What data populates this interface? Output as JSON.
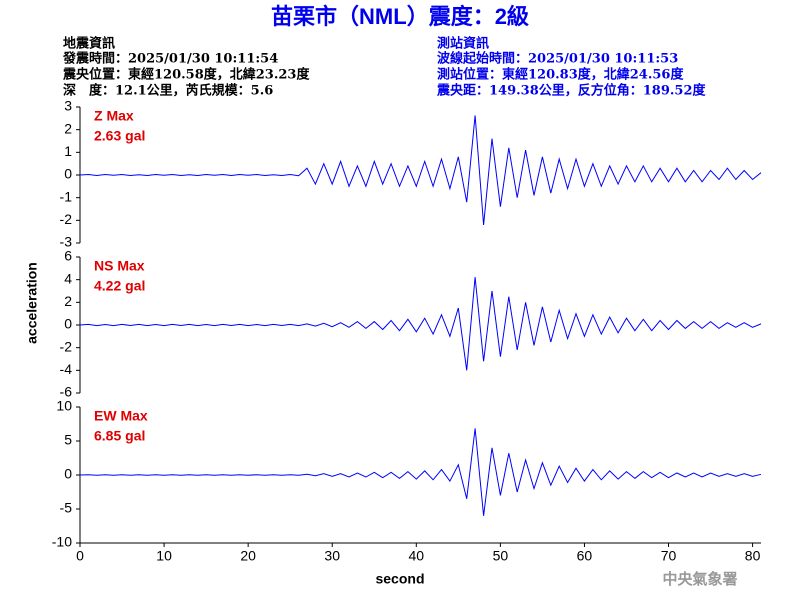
{
  "header": {
    "title": "苗栗市（NML）震度：2級",
    "left": [
      "地震資訊",
      "發震時間：2025/01/30 10:11:54",
      "震央位置：東經120.58度，北緯23.23度",
      "深　度：12.1公里，芮氏規模：5.6"
    ],
    "right": [
      "測站資訊",
      "波線起始時間：2025/01/30 10:11:53",
      "測站位置：東經120.83度，北緯24.56度",
      "震央距：149.38公里，反方位角：189.52度"
    ],
    "y_label": "acceleration",
    "x_label": "second",
    "footer": "中央氣象署"
  },
  "chart_data": [
    {
      "type": "line",
      "annotation": [
        "Z Max",
        "2.63 gal"
      ],
      "color": "#0000ff",
      "xlim": [
        0,
        81
      ],
      "ylim": [
        -3,
        3
      ],
      "yticks": [
        -3,
        -2,
        -1,
        0,
        1,
        2,
        3
      ],
      "x": [
        0,
        1,
        2,
        3,
        4,
        5,
        6,
        7,
        8,
        9,
        10,
        11,
        12,
        13,
        14,
        15,
        16,
        17,
        18,
        19,
        20,
        21,
        22,
        23,
        24,
        25,
        26,
        27,
        28,
        29,
        30,
        31,
        32,
        33,
        34,
        35,
        36,
        37,
        38,
        39,
        40,
        41,
        42,
        43,
        44,
        45,
        46,
        47,
        48,
        49,
        50,
        51,
        52,
        53,
        54,
        55,
        56,
        57,
        58,
        59,
        60,
        61,
        62,
        63,
        64,
        65,
        66,
        67,
        68,
        69,
        70,
        71,
        72,
        73,
        74,
        75,
        76,
        77,
        78,
        79,
        80,
        81
      ],
      "values": [
        0,
        0.02,
        -0.02,
        0.02,
        -0.01,
        0.02,
        -0.02,
        0.01,
        -0.02,
        0.02,
        -0.01,
        0.02,
        -0.02,
        0.01,
        -0.02,
        0.02,
        -0.01,
        0.02,
        -0.02,
        0.02,
        -0.01,
        0.02,
        -0.02,
        0.01,
        -0.02,
        0.02,
        -0.03,
        0.3,
        -0.4,
        0.5,
        -0.4,
        0.6,
        -0.5,
        0.4,
        -0.5,
        0.6,
        -0.4,
        0.5,
        -0.5,
        0.4,
        -0.5,
        0.6,
        -0.5,
        0.7,
        -0.6,
        0.8,
        -1.2,
        2.63,
        -2.2,
        1.6,
        -1.4,
        1.2,
        -1,
        1.1,
        -0.9,
        0.8,
        -0.8,
        0.7,
        -0.6,
        0.7,
        -0.5,
        0.5,
        -0.5,
        0.4,
        -0.4,
        0.4,
        -0.3,
        0.4,
        -0.3,
        0.3,
        -0.3,
        0.3,
        -0.3,
        0.2,
        -0.3,
        0.2,
        -0.2,
        0.3,
        -0.2,
        0.2,
        -0.2,
        0.1
      ]
    },
    {
      "type": "line",
      "annotation": [
        "NS Max",
        "4.22 gal"
      ],
      "color": "#0000ff",
      "xlim": [
        0,
        81
      ],
      "ylim": [
        -6,
        6
      ],
      "yticks": [
        -6,
        -4,
        -2,
        0,
        2,
        4,
        6
      ],
      "x": [
        0,
        1,
        2,
        3,
        4,
        5,
        6,
        7,
        8,
        9,
        10,
        11,
        12,
        13,
        14,
        15,
        16,
        17,
        18,
        19,
        20,
        21,
        22,
        23,
        24,
        25,
        26,
        27,
        28,
        29,
        30,
        31,
        32,
        33,
        34,
        35,
        36,
        37,
        38,
        39,
        40,
        41,
        42,
        43,
        44,
        45,
        46,
        47,
        48,
        49,
        50,
        51,
        52,
        53,
        54,
        55,
        56,
        57,
        58,
        59,
        60,
        61,
        62,
        63,
        64,
        65,
        66,
        67,
        68,
        69,
        70,
        71,
        72,
        73,
        74,
        75,
        76,
        77,
        78,
        79,
        80,
        81
      ],
      "values": [
        0,
        0.05,
        -0.05,
        0.04,
        -0.05,
        0.05,
        -0.04,
        0.05,
        -0.05,
        0.04,
        -0.05,
        0.05,
        -0.04,
        0.05,
        -0.05,
        0.04,
        -0.05,
        0.05,
        -0.04,
        0.05,
        -0.05,
        0.04,
        -0.05,
        0.05,
        -0.04,
        0.05,
        -0.05,
        0.1,
        -0.1,
        0.15,
        -0.15,
        0.2,
        -0.2,
        0.3,
        -0.3,
        0.3,
        -0.4,
        0.4,
        -0.5,
        0.5,
        -0.6,
        0.6,
        -0.8,
        0.9,
        -1,
        1.5,
        -4,
        4.22,
        -3.2,
        3,
        -2.8,
        2.5,
        -2.2,
        2,
        -1.8,
        1.6,
        -1.5,
        1.3,
        -1.2,
        1,
        -1,
        0.9,
        -0.8,
        0.7,
        -0.7,
        0.6,
        -0.5,
        0.5,
        -0.5,
        0.4,
        -0.4,
        0.4,
        -0.3,
        0.3,
        -0.3,
        0.3,
        -0.3,
        0.2,
        -0.2,
        0.2,
        -0.2,
        0.1
      ]
    },
    {
      "type": "line",
      "annotation": [
        "EW Max",
        "6.85 gal"
      ],
      "color": "#0000ff",
      "xlim": [
        0,
        81
      ],
      "ylim": [
        -10,
        10
      ],
      "yticks": [
        -10,
        -5,
        0,
        5,
        10
      ],
      "xticks": [
        0,
        10,
        20,
        30,
        40,
        50,
        60,
        70,
        80
      ],
      "x": [
        0,
        1,
        2,
        3,
        4,
        5,
        6,
        7,
        8,
        9,
        10,
        11,
        12,
        13,
        14,
        15,
        16,
        17,
        18,
        19,
        20,
        21,
        22,
        23,
        24,
        25,
        26,
        27,
        28,
        29,
        30,
        31,
        32,
        33,
        34,
        35,
        36,
        37,
        38,
        39,
        40,
        41,
        42,
        43,
        44,
        45,
        46,
        47,
        48,
        49,
        50,
        51,
        52,
        53,
        54,
        55,
        56,
        57,
        58,
        59,
        60,
        61,
        62,
        63,
        64,
        65,
        66,
        67,
        68,
        69,
        70,
        71,
        72,
        73,
        74,
        75,
        76,
        77,
        78,
        79,
        80,
        81
      ],
      "values": [
        0,
        0.05,
        -0.05,
        0.05,
        -0.05,
        0.05,
        -0.05,
        0.05,
        -0.05,
        0.05,
        -0.05,
        0.05,
        -0.05,
        0.05,
        -0.05,
        0.05,
        -0.05,
        0.05,
        -0.05,
        0.05,
        -0.05,
        0.05,
        -0.05,
        0.05,
        -0.05,
        0.05,
        -0.05,
        0.1,
        -0.1,
        0.2,
        -0.2,
        0.2,
        -0.3,
        0.3,
        -0.3,
        0.4,
        -0.4,
        0.4,
        -0.5,
        0.5,
        -0.6,
        0.6,
        -0.7,
        0.8,
        -0.9,
        1.5,
        -3.5,
        6.85,
        -6,
        4,
        -3,
        3.2,
        -2.5,
        2.2,
        -2,
        1.8,
        -1.5,
        1.3,
        -1.1,
        1,
        -0.9,
        0.8,
        -0.7,
        0.6,
        -0.6,
        0.5,
        -0.5,
        0.5,
        -0.4,
        0.4,
        -0.4,
        0.3,
        -0.3,
        0.3,
        -0.3,
        0.3,
        -0.2,
        0.2,
        -0.2,
        0.2,
        -0.2,
        0.1
      ]
    }
  ]
}
